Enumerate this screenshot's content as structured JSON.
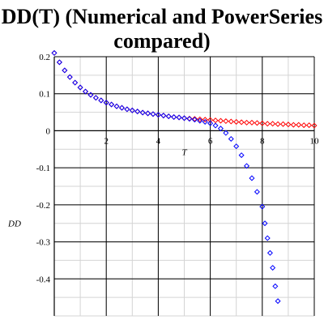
{
  "chart_data": {
    "type": "scatter",
    "title": "DD(T) (Numerical and PowerSeries compared)",
    "xlabel": "T",
    "ylabel": "DD",
    "xlim": [
      0,
      10
    ],
    "ylim": [
      -0.5,
      0.2
    ],
    "xticks": [
      2,
      4,
      6,
      8,
      10
    ],
    "yticks": [
      -0.4,
      -0.3,
      -0.2,
      -0.1,
      0,
      0.1,
      0.2
    ],
    "xtick_labels": [
      "2",
      "4",
      "6",
      "8",
      "10"
    ],
    "ytick_labels": [
      "-0.4",
      "-0.3",
      "-0.2",
      "-0.1",
      "0",
      "0.1",
      "0.2"
    ],
    "grid": true,
    "series": [
      {
        "color": "#ff0000",
        "marker": "diamond",
        "x": [
          0.0,
          0.2,
          0.4,
          0.6,
          0.8,
          1.0,
          1.2,
          1.4,
          1.6,
          1.8,
          2.0,
          2.2,
          2.4,
          2.6,
          2.8,
          3.0,
          3.2,
          3.4,
          3.6,
          3.8,
          4.0,
          4.2,
          4.4,
          4.6,
          4.8,
          5.0,
          5.2,
          5.4,
          5.6,
          5.8,
          6.0,
          6.2,
          6.4,
          6.6,
          6.8,
          7.0,
          7.2,
          7.4,
          7.6,
          7.8,
          8.0,
          8.2,
          8.4,
          8.6,
          8.8,
          9.0,
          9.2,
          9.4,
          9.6,
          9.8,
          10.0
        ],
        "y": [
          0.21,
          0.185,
          0.163,
          0.145,
          0.13,
          0.117,
          0.106,
          0.097,
          0.089,
          0.082,
          0.076,
          0.071,
          0.066,
          0.062,
          0.058,
          0.055,
          0.052,
          0.049,
          0.047,
          0.045,
          0.043,
          0.041,
          0.039,
          0.037,
          0.036,
          0.034,
          0.033,
          0.032,
          0.031,
          0.03,
          0.029,
          0.028,
          0.027,
          0.026,
          0.025,
          0.024,
          0.023,
          0.022,
          0.022,
          0.021,
          0.02,
          0.019,
          0.019,
          0.018,
          0.018,
          0.017,
          0.016,
          0.016,
          0.015,
          0.015,
          0.014
        ]
      },
      {
        "color": "#0000ff",
        "marker": "diamond",
        "x": [
          0.0,
          0.2,
          0.4,
          0.6,
          0.8,
          1.0,
          1.2,
          1.4,
          1.6,
          1.8,
          2.0,
          2.2,
          2.4,
          2.6,
          2.8,
          3.0,
          3.2,
          3.4,
          3.6,
          3.8,
          4.0,
          4.2,
          4.4,
          4.6,
          4.8,
          5.0,
          5.2,
          5.4,
          5.6,
          5.8,
          6.0,
          6.2,
          6.4,
          6.6,
          6.8,
          7.0,
          7.2,
          7.4,
          7.6,
          7.8,
          8.0,
          8.1,
          8.2,
          8.3,
          8.4,
          8.5,
          8.6
        ],
        "y": [
          0.21,
          0.185,
          0.163,
          0.145,
          0.13,
          0.117,
          0.106,
          0.097,
          0.089,
          0.082,
          0.076,
          0.071,
          0.066,
          0.062,
          0.058,
          0.055,
          0.052,
          0.049,
          0.047,
          0.045,
          0.043,
          0.041,
          0.039,
          0.037,
          0.036,
          0.034,
          0.032,
          0.03,
          0.027,
          0.024,
          0.02,
          0.014,
          0.006,
          -0.006,
          -0.022,
          -0.042,
          -0.066,
          -0.095,
          -0.128,
          -0.165,
          -0.205,
          -0.25,
          -0.29,
          -0.33,
          -0.37,
          -0.42,
          -0.46
        ]
      }
    ]
  }
}
